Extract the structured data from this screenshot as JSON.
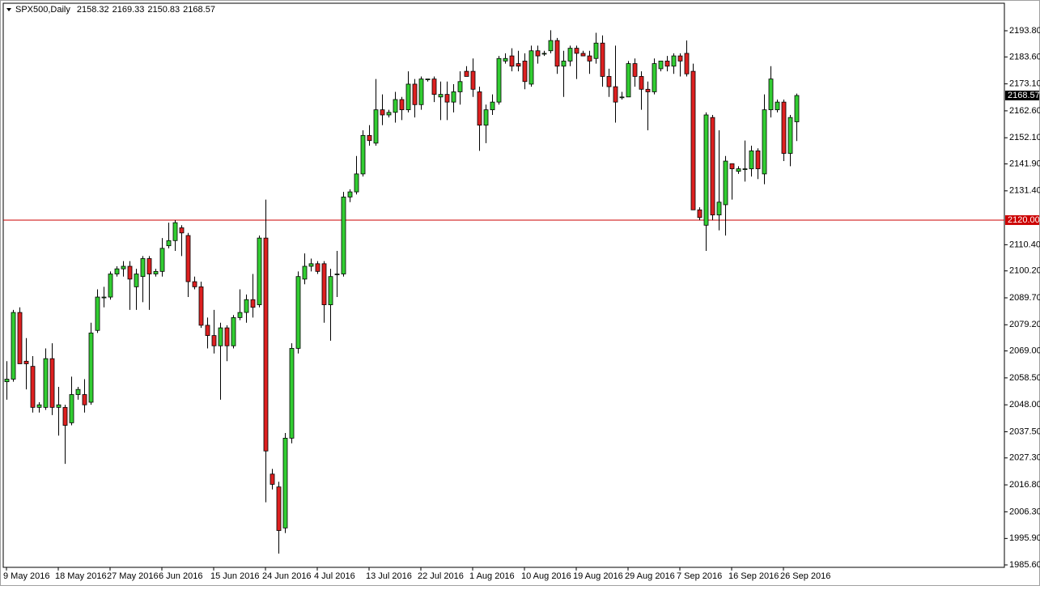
{
  "chart_data": {
    "type": "candlestick",
    "title": "SPX500,Daily",
    "header_values": [
      2158.32,
      2169.33,
      2150.83,
      2168.57
    ],
    "up_color": "#32cd32",
    "down_color": "#dd2020",
    "categories": [
      "9 May 2016",
      null,
      null,
      null,
      null,
      null,
      null,
      null,
      "18 May 2016",
      null,
      null,
      null,
      null,
      null,
      null,
      null,
      "27 May 2016",
      null,
      null,
      null,
      null,
      null,
      null,
      null,
      "6 Jun 2016",
      null,
      null,
      null,
      null,
      null,
      null,
      null,
      "15 Jun 2016",
      null,
      null,
      null,
      null,
      null,
      null,
      null,
      "24 Jun 2016",
      null,
      null,
      null,
      null,
      null,
      null,
      null,
      "4 Jul 2016",
      null,
      null,
      null,
      null,
      null,
      null,
      null,
      "13 Jul 2016",
      null,
      null,
      null,
      null,
      null,
      null,
      null,
      "22 Jul 2016",
      null,
      null,
      null,
      null,
      null,
      null,
      null,
      "1 Aug 2016",
      null,
      null,
      null,
      null,
      null,
      null,
      null,
      "10 Aug 2016",
      null,
      null,
      null,
      null,
      null,
      null,
      null,
      "19 Aug 2016",
      null,
      null,
      null,
      null,
      null,
      null,
      null,
      "29 Aug 2016",
      null,
      null,
      null,
      null,
      null,
      null,
      null,
      "7 Sep 2016",
      null,
      null,
      null,
      null,
      null,
      null,
      null,
      "16 Sep 2016",
      null,
      null,
      null,
      null,
      null,
      null,
      null,
      "26 Sep 2016",
      null,
      null
    ],
    "open": [
      2057,
      2058,
      2084,
      2065,
      2063,
      2047,
      2047,
      2066,
      2047,
      2047,
      2041,
      2052,
      2052,
      2049,
      2077,
      2090,
      2090,
      2099,
      2101,
      2102,
      2094,
      2098,
      2105,
      2099,
      2100,
      2110,
      2112,
      2117,
      2114,
      2096,
      2094,
      2079,
      2075,
      2071,
      2078,
      2071,
      2082,
      2084,
      2089,
      2087,
      2113,
      2021,
      2016,
      2000,
      2035,
      2070,
      2097,
      2102,
      2103,
      2103,
      2087,
      2099,
      2099,
      2129,
      2131,
      2138,
      2153,
      2150,
      2163,
      2161,
      2162,
      2167,
      2163,
      2173,
      2165,
      2175,
      2175,
      2168,
      2169,
      2166,
      2170,
      2178,
      2178,
      2170,
      2157,
      2163,
      2166,
      2182,
      2184,
      2181,
      2182,
      2173,
      2186,
      2185,
      2186,
      2190,
      2180,
      2182,
      2187,
      2185,
      2184,
      2183,
      2189,
      2176,
      2172,
      2168,
      2168,
      2181,
      2176,
      2171,
      2170,
      2179,
      2182,
      2180,
      2184,
      2185,
      2178,
      2124,
      2118,
      2160,
      2122,
      2126,
      2142,
      2139,
      2140,
      2140,
      2147,
      2138,
      2163,
      2163,
      2166,
      2146,
      2158.32
    ],
    "high": [
      2065,
      2085,
      2086,
      2074,
      2067,
      2049,
      2070,
      2072,
      2055,
      2048,
      2059,
      2055,
      2058,
      2080,
      2093,
      2094,
      2100,
      2102,
      2104,
      2104,
      2101,
      2106,
      2106,
      2101,
      2113,
      2119,
      2120,
      2118,
      2115,
      2098,
      2096,
      2082,
      2085,
      2080,
      2079,
      2083,
      2093,
      2091,
      2099,
      2114,
      2128,
      2023,
      2018,
      2037,
      2072,
      2100,
      2107,
      2105,
      2104,
      2104,
      2101,
      2108,
      2131,
      2132,
      2145,
      2155,
      2157,
      2175,
      2169,
      2163,
      2170,
      2168,
      2178,
      2175,
      2176,
      2175,
      2176,
      2174,
      2174,
      2173,
      2178,
      2180,
      2183,
      2172,
      2165,
      2169,
      2184,
      2185,
      2187,
      2186,
      2185,
      2188,
      2188,
      2186,
      2194,
      2191,
      2186,
      2188,
      2188,
      2186,
      2186,
      2193,
      2192,
      2179,
      2188,
      2170,
      2182,
      2183,
      2178,
      2174,
      2183,
      2182,
      2184,
      2185,
      2185,
      2190,
      2181,
      2125,
      2162,
      2161,
      2155,
      2145,
      2142,
      2141,
      2151,
      2149,
      2148,
      2169,
      2180,
      2167,
      2167,
      2161,
      2169.33
    ],
    "low": [
      2050,
      2057,
      2064,
      2054,
      2045,
      2045,
      2046,
      2044,
      2036,
      2025,
      2040,
      2050,
      2045,
      2048,
      2076,
      2086,
      2089,
      2098,
      2098,
      2085,
      2085,
      2088,
      2085,
      2098,
      2098,
      2109,
      2108,
      2106,
      2090,
      2093,
      2078,
      2070,
      2068,
      2050,
      2065,
      2070,
      2081,
      2080,
      2082,
      2086,
      2010,
      2015,
      1990,
      1998,
      2033,
      2068,
      2095,
      2100,
      2099,
      2080,
      2073,
      2090,
      2098,
      2127,
      2130,
      2137,
      2149,
      2149,
      2157,
      2160,
      2158,
      2159,
      2162,
      2160,
      2163,
      2174,
      2166,
      2159,
      2159,
      2162,
      2165,
      2176,
      2168,
      2147,
      2150,
      2161,
      2165,
      2181,
      2178,
      2178,
      2171,
      2172,
      2181,
      2184,
      2185,
      2177,
      2168,
      2180,
      2175,
      2184,
      2177,
      2181,
      2172,
      2168,
      2158,
      2167,
      2168,
      2172,
      2163,
      2155,
      2169,
      2178,
      2178,
      2177,
      2176,
      2176,
      2124,
      2120,
      2108,
      2120,
      2116,
      2114,
      2128,
      2138,
      2135,
      2137,
      2136,
      2134,
      2160,
      2162,
      2143,
      2141,
      2150.83
    ],
    "close": [
      2058,
      2084,
      2064,
      2064,
      2047,
      2048,
      2066,
      2047,
      2048,
      2040,
      2052,
      2054,
      2048,
      2076,
      2090,
      2090,
      2099,
      2101,
      2102,
      2097,
      2099,
      2105,
      2099,
      2100,
      2109,
      2112,
      2119,
      2115,
      2096,
      2094,
      2079,
      2075,
      2071,
      2078,
      2071,
      2082,
      2084,
      2089,
      2086,
      2113,
      2030,
      2017,
      1999,
      2035,
      2070,
      2098,
      2102,
      2103,
      2100,
      2087,
      2098,
      2099,
      2129,
      2131,
      2138,
      2153,
      2151,
      2163,
      2161,
      2162,
      2167,
      2163,
      2173,
      2165,
      2175,
      2175,
      2169,
      2169,
      2166,
      2170,
      2174,
      2176,
      2171,
      2157,
      2163,
      2166,
      2183,
      2183,
      2180,
      2180,
      2174,
      2186,
      2184,
      2185,
      2190,
      2180,
      2182,
      2187,
      2185,
      2184,
      2182,
      2189,
      2176,
      2172,
      2166,
      2168,
      2181,
      2176,
      2171,
      2170,
      2181,
      2182,
      2180,
      2184,
      2182,
      2177,
      2124,
      2121,
      2161,
      2122,
      2127,
      2143,
      2140,
      2140,
      2140,
      2147,
      2140,
      2163,
      2175,
      2166,
      2146,
      2160,
      2168.57
    ],
    "ylim": [
      1984.65,
      2204.53
    ],
    "yticks": [
      {
        "value": 1985.6,
        "label": "1985.60"
      },
      {
        "value": 1995.9,
        "label": "1995.90"
      },
      {
        "value": 2006.3,
        "label": "2006.30"
      },
      {
        "value": 2016.8,
        "label": "2016.80"
      },
      {
        "value": 2027.3,
        "label": "2027.30"
      },
      {
        "value": 2037.5,
        "label": "2037.50"
      },
      {
        "value": 2048,
        "label": "2048.00"
      },
      {
        "value": 2058.5,
        "label": "2058.50"
      },
      {
        "value": 2069,
        "label": "2069.00"
      },
      {
        "value": 2079.2,
        "label": "2079.20"
      },
      {
        "value": 2089.7,
        "label": "2089.70"
      },
      {
        "value": 2100.2,
        "label": "2100.20"
      },
      {
        "value": 2110.4,
        "label": "2110.40"
      },
      {
        "value": 2131.4,
        "label": "2131.40"
      },
      {
        "value": 2141.9,
        "label": "2141.90"
      },
      {
        "value": 2152.1,
        "label": "2152.10"
      },
      {
        "value": 2162.6,
        "label": "2162.60"
      },
      {
        "value": 2173.1,
        "label": "2173.10"
      },
      {
        "value": 2183.6,
        "label": "2183.60"
      },
      {
        "value": 2193.8,
        "label": "2193.80"
      }
    ],
    "hline": {
      "value": 2120,
      "label": "2120.00",
      "color": "#cc0000"
    },
    "last_price": 2168.57
  }
}
